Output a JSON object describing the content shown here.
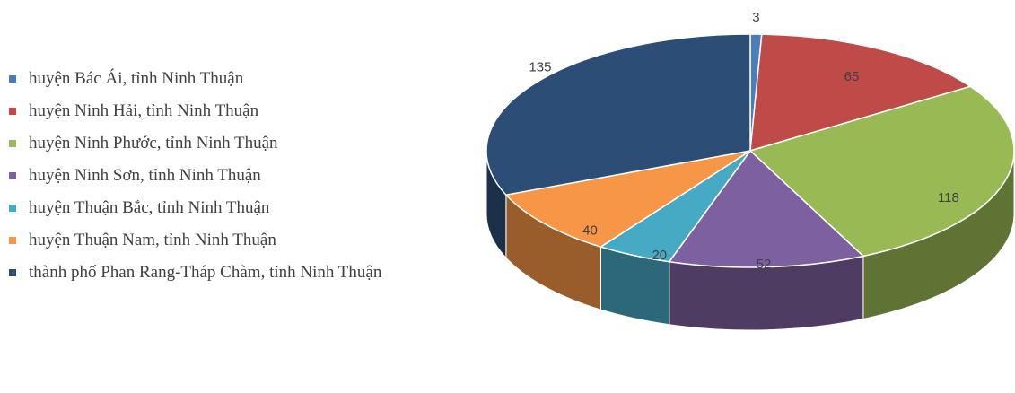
{
  "chart_data": {
    "type": "pie",
    "style": "3d",
    "categories": [
      "huyện Bác Ái, tỉnh Ninh Thuận",
      "huyện Ninh Hải, tỉnh Ninh Thuận",
      "huyện Ninh Phước, tỉnh Ninh Thuận",
      "huyện Ninh Sơn, tỉnh Ninh Thuận",
      "huyện Thuận Bắc, tỉnh Ninh Thuận",
      "huyện Thuận Nam, tỉnh Ninh Thuận",
      "thành phố Phan Rang-Tháp Chàm, tỉnh Ninh Thuận"
    ],
    "values": [
      3,
      65,
      118,
      52,
      20,
      40,
      135
    ],
    "colors": [
      "#4a7ebb",
      "#be4b48",
      "#98b954",
      "#7d60a0",
      "#46aac5",
      "#f79646",
      "#2c4d75"
    ],
    "legend_position": "left"
  }
}
